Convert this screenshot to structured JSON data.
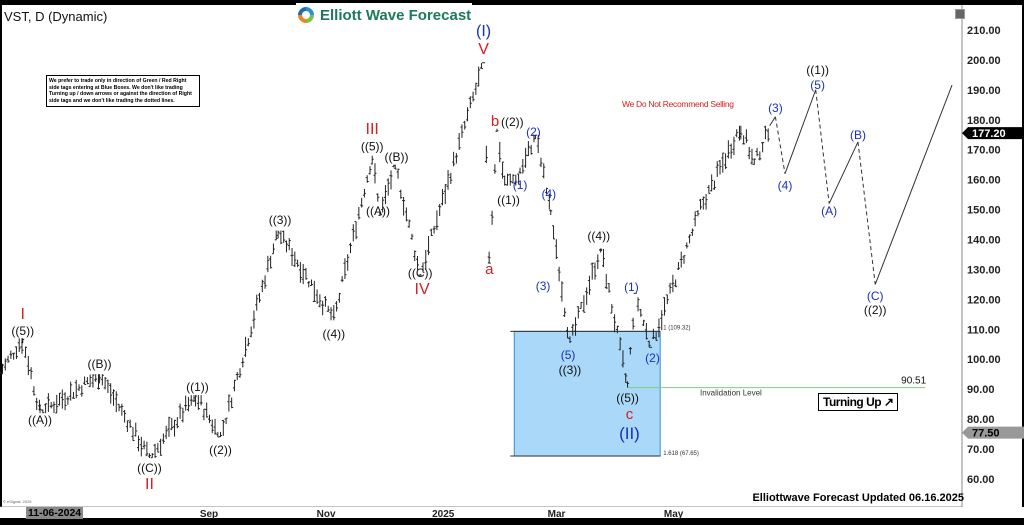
{
  "header": {
    "title": "VST, D (Dynamic)",
    "brand": "Elliott Wave Forecast"
  },
  "note": "We prefer to trade only in direction of Green / Red Right side tags entering at Blue Boxes. We don't like trading Turning up / down arrows or against the direction of Right side tags and we don't like trading the dotted lines.",
  "warning": "We Do Not Recommend Selling",
  "turning": "Turning Up ↗",
  "footer": {
    "updated": "Elliottwave Forecast Updated 06.16.2025",
    "copyright": "© eSignal, 2025",
    "cursor_date": "11-06-2024"
  },
  "colors": {
    "red": "#d42020",
    "blue": "#1a2fc0",
    "box": "#aad8f8",
    "invalidation": "#7ccf7c"
  },
  "chart_data": {
    "type": "ohlc-bar",
    "title": "VST, D (Dynamic)",
    "ylim": [
      55,
      215
    ],
    "yticks": [
      "210.00",
      "200.00",
      "190.00",
      "180.00",
      "170.00",
      "160.00",
      "150.00",
      "140.00",
      "130.00",
      "120.00",
      "110.00",
      "100.00",
      "90.00",
      "80.00",
      "70.00",
      "60.00"
    ],
    "xticks": [
      {
        "date": "2024-09-01",
        "label": "Sep"
      },
      {
        "date": "2024-11-01",
        "label": "Nov"
      },
      {
        "date": "2025-01-01",
        "label": "2025"
      },
      {
        "date": "2025-03-01",
        "label": "Mar"
      },
      {
        "date": "2025-05-01",
        "label": "May"
      }
    ],
    "last_price": "177.20",
    "marker_price": "77.50",
    "price_pivots": [
      [
        "2024-05-15",
        95
      ],
      [
        "2024-05-27",
        107
      ],
      [
        "2024-06-05",
        82
      ],
      [
        "2024-07-06",
        95
      ],
      [
        "2024-08-01",
        67
      ],
      [
        "2024-08-25",
        88
      ],
      [
        "2024-09-07",
        74
      ],
      [
        "2024-10-07",
        143
      ],
      [
        "2024-11-05",
        113
      ],
      [
        "2024-11-25",
        168
      ],
      [
        "2024-11-29",
        148
      ],
      [
        "2024-12-07",
        165
      ],
      [
        "2024-12-20",
        128
      ],
      [
        "2025-01-22",
        199
      ],
      [
        "2025-01-25",
        132
      ],
      [
        "2025-01-29",
        177
      ],
      [
        "2025-02-02",
        158
      ],
      [
        "2025-02-10",
        162
      ],
      [
        "2025-02-18",
        175
      ],
      [
        "2025-02-26",
        150
      ],
      [
        "2025-03-08",
        105
      ],
      [
        "2025-03-24",
        137
      ],
      [
        "2025-04-07",
        90.51
      ],
      [
        "2025-04-11",
        122
      ],
      [
        "2025-04-19",
        104
      ],
      [
        "2025-05-15",
        150
      ],
      [
        "2025-06-05",
        178
      ],
      [
        "2025-06-12",
        165
      ],
      [
        "2025-06-20",
        178
      ]
    ],
    "projection": [
      {
        "date": "2025-06-20",
        "price": 178,
        "style": "solid"
      },
      {
        "date": "2025-06-23",
        "price": 181,
        "style": "dashed"
      },
      {
        "date": "2025-06-28",
        "price": 162,
        "style": "solid"
      },
      {
        "date": "2025-07-14",
        "price": 190,
        "style": "dashed"
      },
      {
        "date": "2025-07-21",
        "price": 152,
        "style": "solid"
      },
      {
        "date": "2025-08-05",
        "price": 172.6,
        "style": "dashed"
      },
      {
        "date": "2025-08-14",
        "price": 125,
        "style": "solid"
      },
      {
        "date": "2025-09-23",
        "price": 191.6,
        "style": "end"
      }
    ],
    "blue_box": {
      "from": "2025-02-07",
      "to": "2025-04-24",
      "top": 109.32,
      "bottom": 67.65,
      "top_label": "1 (109.32)",
      "bottom_label": "1.618 (67.65)"
    },
    "invalidation": {
      "price": 90.51,
      "label": "Invalidation Level",
      "value_label": "90.51",
      "from": "2025-04-07",
      "to": "2025-09-09"
    },
    "wave_labels": [
      {
        "t": "I",
        "c": "red",
        "d": "2024-05-27",
        "p": 114.8,
        "s": 16
      },
      {
        "t": "((5))",
        "c": "black",
        "d": "2024-05-27",
        "p": 109.8
      },
      {
        "t": "((A))",
        "c": "black",
        "d": "2024-06-05",
        "p": 79.7
      },
      {
        "t": "((B))",
        "c": "black",
        "d": "2024-07-06",
        "p": 98.4
      },
      {
        "t": "((C))",
        "c": "black",
        "d": "2024-08-01",
        "p": 63.7
      },
      {
        "t": "II",
        "c": "red",
        "d": "2024-08-01",
        "p": 58,
        "s": 16
      },
      {
        "t": "((1))",
        "c": "black",
        "d": "2024-08-26",
        "p": 90.7
      },
      {
        "t": "((2))",
        "c": "black",
        "d": "2024-09-07",
        "p": 69.7
      },
      {
        "t": "((3))",
        "c": "black",
        "d": "2024-10-08",
        "p": 146.5
      },
      {
        "t": "((4))",
        "c": "black",
        "d": "2024-11-05",
        "p": 108.4
      },
      {
        "t": "III",
        "c": "red",
        "d": "2024-11-25",
        "p": 176.6,
        "s": 16
      },
      {
        "t": "((5))",
        "c": "black",
        "d": "2024-11-25",
        "p": 171
      },
      {
        "t": "((B))",
        "c": "black",
        "d": "2024-12-07",
        "p": 167.6
      },
      {
        "t": "((A))",
        "c": "black",
        "d": "2024-11-28",
        "p": 149.5
      },
      {
        "t": "((C))",
        "c": "black",
        "d": "2024-12-20",
        "p": 128.8
      },
      {
        "t": "IV",
        "c": "red",
        "d": "2024-12-21",
        "p": 123.5,
        "s": 16
      },
      {
        "t": "(I)",
        "c": "blue",
        "d": "2025-01-22",
        "p": 209.3,
        "s": 16
      },
      {
        "t": "V",
        "c": "red",
        "d": "2025-01-22",
        "p": 203.3,
        "s": 16
      },
      {
        "t": "a",
        "c": "red",
        "d": "2025-01-25",
        "p": 129.8,
        "s": 15
      },
      {
        "t": "b",
        "c": "red",
        "d": "2025-01-28",
        "p": 179.3,
        "s": 15
      },
      {
        "t": "((2))",
        "c": "black",
        "d": "2025-02-06",
        "p": 179.3
      },
      {
        "t": "((1))",
        "c": "black",
        "d": "2025-02-04",
        "p": 153.2
      },
      {
        "t": "(1)",
        "c": "blue",
        "d": "2025-02-10",
        "p": 157.5
      },
      {
        "t": "(2)",
        "c": "blue",
        "d": "2025-02-17",
        "p": 175.9
      },
      {
        "t": "(4)",
        "c": "blue",
        "d": "2025-02-25",
        "p": 155.2
      },
      {
        "t": "(3)",
        "c": "blue",
        "d": "2025-02-22",
        "p": 124.5
      },
      {
        "t": "(5)",
        "c": "blue",
        "d": "2025-03-07",
        "p": 101.4
      },
      {
        "t": "((3))",
        "c": "black",
        "d": "2025-03-08",
        "p": 97
      },
      {
        "t": "((4))",
        "c": "black",
        "d": "2025-03-23",
        "p": 141.2
      },
      {
        "t": "(1)",
        "c": "blue",
        "d": "2025-04-09",
        "p": 124.1
      },
      {
        "t": "(2)",
        "c": "blue",
        "d": "2025-04-20",
        "p": 100.4
      },
      {
        "t": "((5))",
        "c": "black",
        "d": "2025-04-07",
        "p": 87
      },
      {
        "t": "c",
        "c": "red",
        "d": "2025-04-08",
        "p": 83.7,
        "s": 15
      },
      {
        "t": "(II)",
        "c": "blue",
        "d": "2025-04-08",
        "p": 78.4,
        "s": 17
      },
      {
        "t": "(3)",
        "c": "blue",
        "d": "2025-06-23",
        "p": 184
      },
      {
        "t": "(4)",
        "c": "blue",
        "d": "2025-06-28",
        "p": 158
      },
      {
        "t": "((1))",
        "c": "black",
        "d": "2025-07-15",
        "p": 196.6
      },
      {
        "t": "(5)",
        "c": "blue",
        "d": "2025-07-15",
        "p": 192.3
      },
      {
        "t": "(A)",
        "c": "blue",
        "d": "2025-07-21",
        "p": 149.5
      },
      {
        "t": "(B)",
        "c": "blue",
        "d": "2025-08-05",
        "p": 174.9
      },
      {
        "t": "(C)",
        "c": "blue",
        "d": "2025-08-14",
        "p": 121.1
      },
      {
        "t": "((2))",
        "c": "black",
        "d": "2025-08-14",
        "p": 116.4
      }
    ]
  }
}
